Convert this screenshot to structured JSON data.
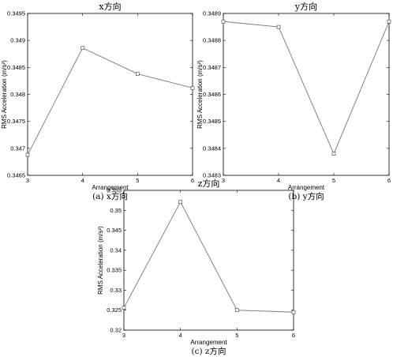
{
  "chart_data": [
    {
      "type": "line",
      "title": "x方向",
      "caption": "(a) x方向",
      "xlabel": "Arrangement",
      "ylabel": "RMS Acceleration (m/s²)",
      "x": [
        3,
        4,
        5,
        6
      ],
      "series": [
        {
          "values": [
            0.34688,
            0.34886,
            0.34838,
            0.34812
          ]
        }
      ],
      "xlim": [
        3,
        6
      ],
      "ylim": [
        0.3465,
        0.3495
      ],
      "xticks": [
        "3",
        "4",
        "5",
        "6"
      ],
      "yticks": [
        {
          "v": 0.3465,
          "label": "0.3465"
        },
        {
          "v": 0.347,
          "label": "0.347"
        },
        {
          "v": 0.3475,
          "label": "0.3475"
        },
        {
          "v": 0.348,
          "label": "0.348"
        },
        {
          "v": 0.3485,
          "label": "0.3485"
        },
        {
          "v": 0.349,
          "label": "0.349"
        },
        {
          "v": 0.3495,
          "label": "0.3495"
        }
      ],
      "grid": false
    },
    {
      "type": "line",
      "title": "y方向",
      "caption": "(b) y方向",
      "xlabel": "Arrangement",
      "ylabel": "RMS Acceleration (m/s²)",
      "x": [
        3,
        4,
        5,
        6
      ],
      "series": [
        {
          "values": [
            0.34887,
            0.34885,
            0.34838,
            0.34887
          ]
        }
      ],
      "xlim": [
        3,
        6
      ],
      "ylim": [
        0.3483,
        0.3489
      ],
      "xticks": [
        "3",
        "4",
        "5",
        "6"
      ],
      "yticks": [
        {
          "v": 0.3483,
          "label": "0.3483"
        },
        {
          "v": 0.3484,
          "label": "0.3484"
        },
        {
          "v": 0.3485,
          "label": "0.3485"
        },
        {
          "v": 0.3486,
          "label": "0.3486"
        },
        {
          "v": 0.3487,
          "label": "0.3487"
        },
        {
          "v": 0.3488,
          "label": "0.3488"
        },
        {
          "v": 0.3489,
          "label": "0.3489"
        }
      ],
      "grid": false
    },
    {
      "type": "line",
      "title": "z方向",
      "caption": "(c) z方向",
      "xlabel": "Arrangement",
      "ylabel": "RMS Acceleration (m/s²)",
      "x": [
        3,
        4,
        5,
        6
      ],
      "series": [
        {
          "values": [
            0.3256,
            0.3521,
            0.325,
            0.3245
          ]
        }
      ],
      "xlim": [
        3,
        6
      ],
      "ylim": [
        0.32,
        0.355
      ],
      "xticks": [
        "3",
        "4",
        "5",
        "6"
      ],
      "yticks": [
        {
          "v": 0.32,
          "label": "0.32"
        },
        {
          "v": 0.325,
          "label": "0.325"
        },
        {
          "v": 0.33,
          "label": "0.33"
        },
        {
          "v": 0.335,
          "label": "0.335"
        },
        {
          "v": 0.34,
          "label": "0.34"
        },
        {
          "v": 0.345,
          "label": "0.345"
        },
        {
          "v": 0.35,
          "label": "0.35"
        },
        {
          "v": 0.355,
          "label": "0.355"
        }
      ],
      "grid": false
    }
  ]
}
